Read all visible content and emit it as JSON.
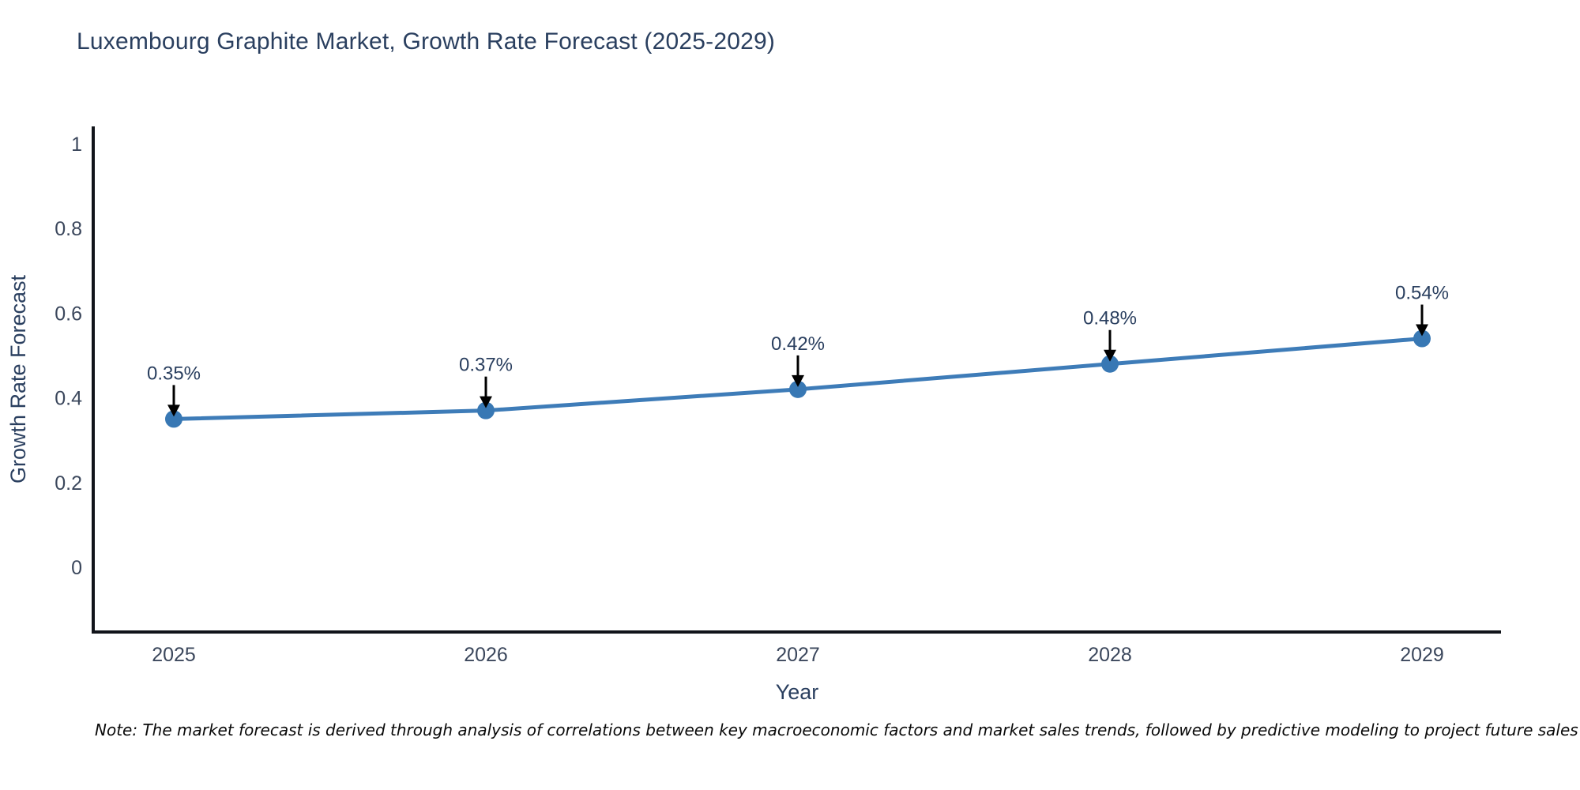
{
  "chart_data": {
    "type": "line",
    "title": "Luxembourg Graphite Market, Growth Rate Forecast (2025-2029)",
    "xlabel": "Year",
    "ylabel": "Growth Rate Forecast",
    "categories": [
      "2025",
      "2026",
      "2027",
      "2028",
      "2029"
    ],
    "values": [
      0.35,
      0.37,
      0.42,
      0.48,
      0.54
    ],
    "point_labels": [
      "0.35%",
      "0.37%",
      "0.42%",
      "0.48%",
      "0.54%"
    ],
    "yticks": [
      0,
      0.2,
      0.4,
      0.6,
      0.8,
      1
    ],
    "ytick_labels": [
      "0",
      "0.2",
      "0.4",
      "0.6",
      "0.8",
      "1"
    ],
    "ylim": [
      -0.15,
      1.04
    ],
    "grid": false,
    "legend": false,
    "annotation_style": "text-with-down-arrow",
    "colors": {
      "line": "#3e7cb8",
      "marker": "#3878b4",
      "axis": "#11141a",
      "text": "#2a3f5f",
      "tick_text": "#3b475c",
      "arrow": "#000000"
    }
  },
  "note": "Note: The market forecast is derived through analysis of correlations between key macroeconomic factors and market sales trends, followed by predictive modeling to project future sales"
}
